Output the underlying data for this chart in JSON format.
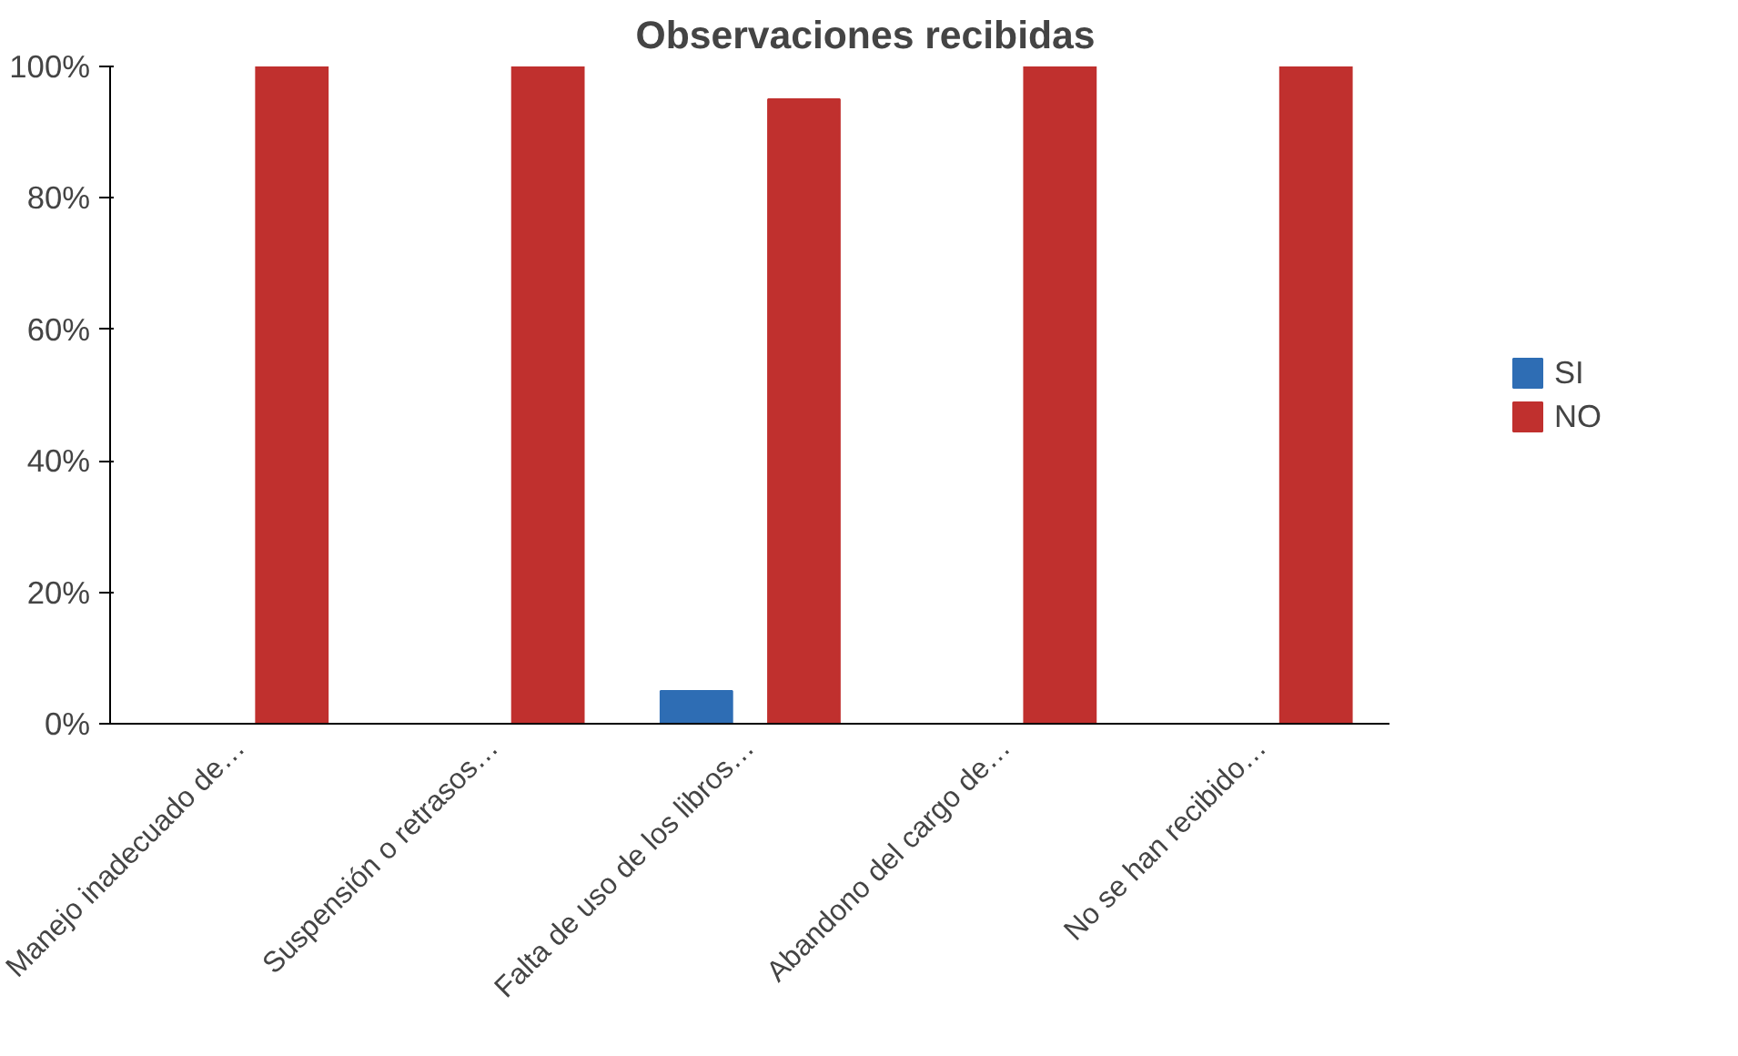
{
  "chart_data": {
    "type": "bar",
    "title": "Observaciones recibidas",
    "categories": [
      "Manejo inadecuado de…",
      "Suspensión o retrasos…",
      "Falta de uso de los libros…",
      "Abandono del cargo de…",
      "No se han recibido…"
    ],
    "series": [
      {
        "name": "SI",
        "color": "#2e6db4",
        "values": [
          0,
          0,
          5,
          0,
          0
        ]
      },
      {
        "name": "NO",
        "color": "#c0302e",
        "values": [
          100,
          100,
          95,
          100,
          100
        ]
      }
    ],
    "ylim": [
      0,
      100
    ],
    "yticks": [
      {
        "value": 0,
        "label": "0%"
      },
      {
        "value": 20,
        "label": "20%"
      },
      {
        "value": 40,
        "label": "40%"
      },
      {
        "value": 60,
        "label": "60%"
      },
      {
        "value": 80,
        "label": "80%"
      },
      {
        "value": 100,
        "label": "100%"
      }
    ],
    "grid": false,
    "legend": "right"
  }
}
